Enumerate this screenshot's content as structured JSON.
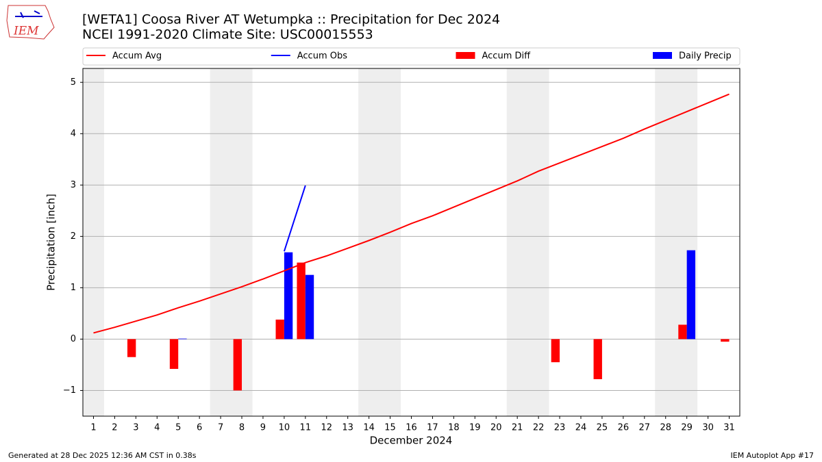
{
  "logo": "IEM",
  "footer": {
    "left": "Generated at 28 Dec 2025 12:36 AM CST in 0.38s",
    "right": "IEM Autoplot App #17"
  },
  "chart_data": {
    "type": "combo",
    "title": "[WETA1] Coosa River  AT Wetumpka :: Precipitation for Dec 2024",
    "subtitle": "NCEI 1991-2020 Climate Site: USC00015553",
    "xlabel": "December 2024",
    "ylabel": "Precipitation [inch]",
    "x": [
      1,
      2,
      3,
      4,
      5,
      6,
      7,
      8,
      9,
      10,
      11,
      12,
      13,
      14,
      15,
      16,
      17,
      18,
      19,
      20,
      21,
      22,
      23,
      24,
      25,
      26,
      27,
      28,
      29,
      30,
      31
    ],
    "xlim": [
      0.5,
      31.5
    ],
    "xticks": [
      1,
      2,
      3,
      4,
      5,
      6,
      7,
      8,
      9,
      10,
      11,
      12,
      13,
      14,
      15,
      16,
      17,
      18,
      19,
      20,
      21,
      22,
      23,
      24,
      25,
      26,
      27,
      28,
      29,
      30,
      31
    ],
    "ylim": [
      -1.5,
      5.27
    ],
    "yticks": [
      {
        "value": -1,
        "label": "−1"
      },
      0,
      1,
      2,
      3,
      4,
      5
    ],
    "grid": true,
    "legend": "top",
    "shaded_x_ranges": [
      [
        0.5,
        1.5
      ],
      [
        6.5,
        8.5
      ],
      [
        13.5,
        15.5
      ],
      [
        20.5,
        22.5
      ],
      [
        27.5,
        29.5
      ]
    ],
    "series": [
      {
        "name": "Accum Avg",
        "kind": "line",
        "color": "#ff0000",
        "values": [
          0.12,
          0.23,
          0.35,
          0.47,
          0.61,
          0.74,
          0.88,
          1.02,
          1.17,
          1.33,
          1.49,
          1.62,
          1.77,
          1.92,
          2.08,
          2.25,
          2.4,
          2.57,
          2.74,
          2.91,
          3.08,
          3.27,
          3.43,
          3.59,
          3.75,
          3.91,
          4.09,
          4.26,
          4.43,
          4.6,
          4.77
        ]
      },
      {
        "name": "Accum Obs",
        "kind": "line",
        "color": "#0000ff",
        "values": [
          null,
          null,
          null,
          null,
          null,
          null,
          null,
          null,
          null,
          1.71,
          2.99,
          null,
          null,
          null,
          null,
          null,
          null,
          null,
          null,
          null,
          null,
          null,
          null,
          null,
          null,
          null,
          null,
          null,
          null,
          null,
          null
        ]
      },
      {
        "name": "Accum Diff",
        "kind": "bar",
        "color": "#ff0000",
        "values": [
          null,
          null,
          -0.35,
          null,
          -0.58,
          null,
          null,
          -1.0,
          null,
          0.38,
          1.49,
          null,
          null,
          null,
          null,
          null,
          null,
          null,
          null,
          null,
          null,
          null,
          -0.45,
          null,
          -0.78,
          null,
          null,
          null,
          0.28,
          null,
          -0.05
        ]
      },
      {
        "name": "Daily Precip",
        "kind": "bar",
        "color": "#0000ff",
        "values": [
          null,
          null,
          null,
          null,
          0.01,
          null,
          null,
          null,
          null,
          1.69,
          1.25,
          null,
          null,
          null,
          null,
          null,
          null,
          null,
          null,
          null,
          null,
          null,
          null,
          null,
          null,
          null,
          null,
          null,
          1.73,
          null,
          null
        ]
      }
    ]
  }
}
